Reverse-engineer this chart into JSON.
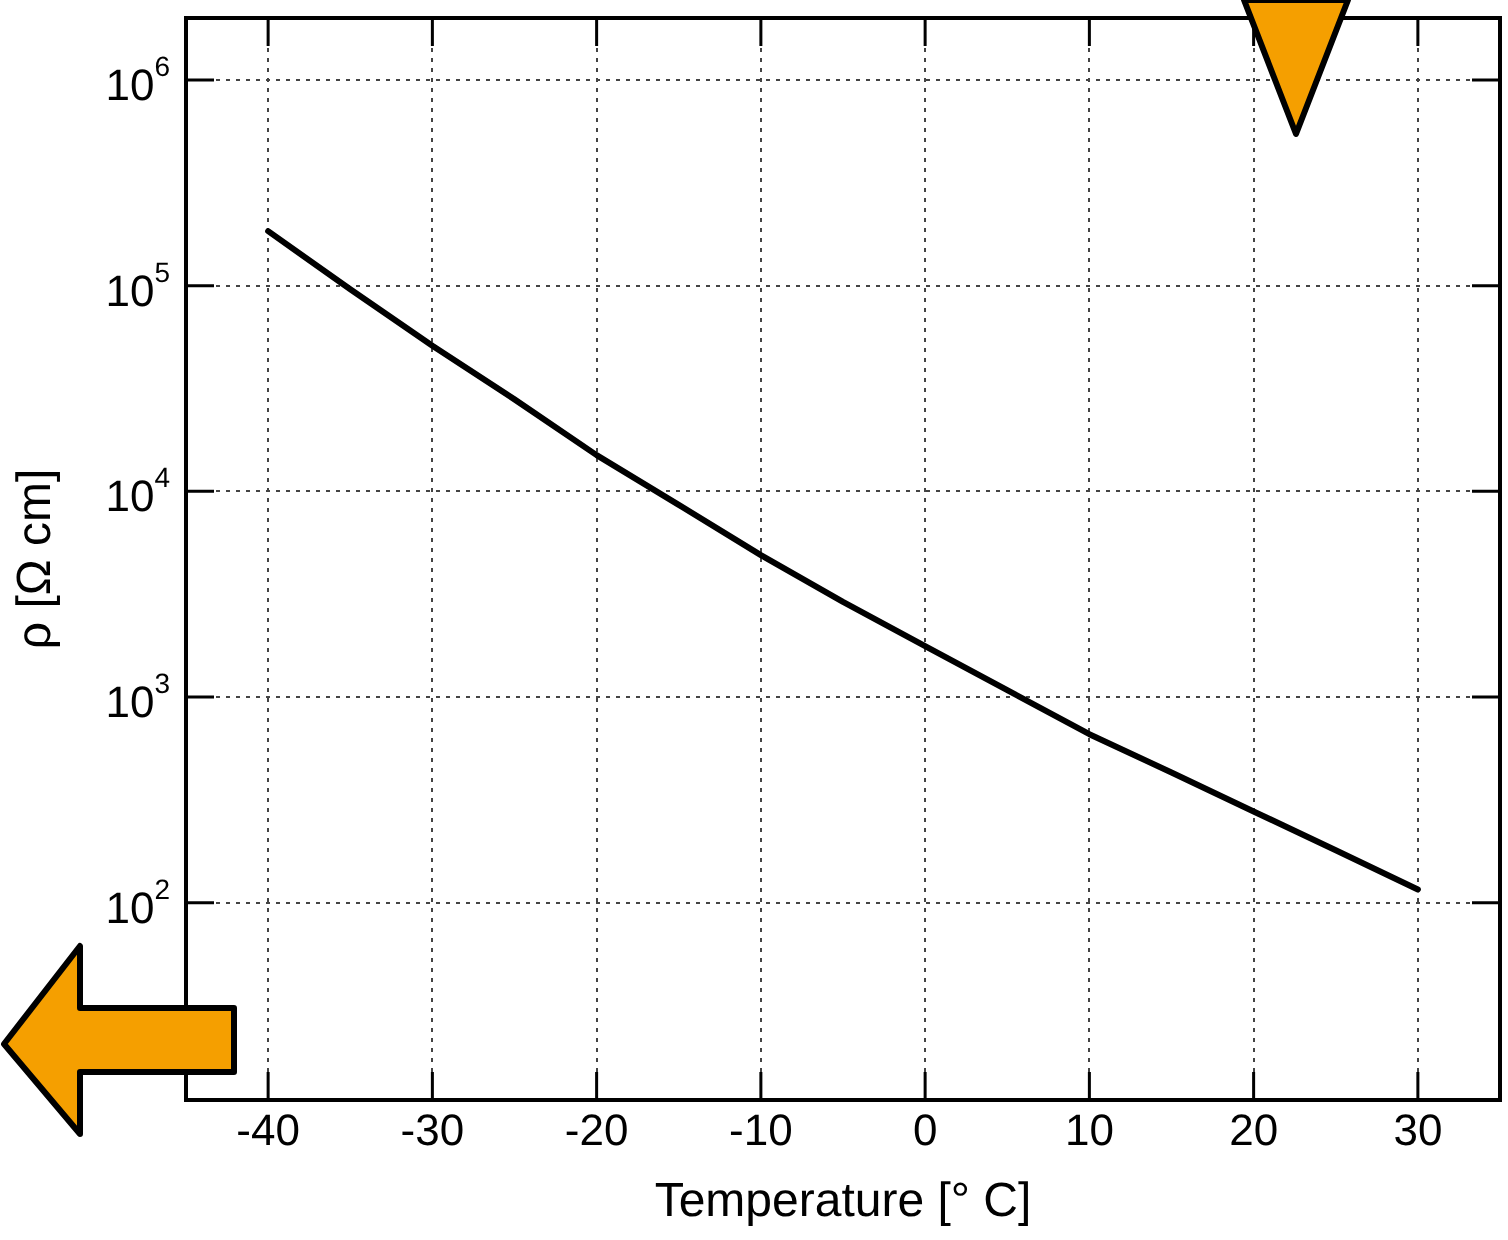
{
  "chart_data": {
    "type": "line",
    "xlabel": "Temperature [° C]",
    "ylabel": "ρ [Ω cm]",
    "x": [
      -40,
      -35,
      -30,
      -25,
      -20,
      -15,
      -10,
      -5,
      0,
      5,
      10,
      15,
      20,
      25,
      30
    ],
    "series": [
      {
        "color": "#000000",
        "values": [
          184000,
          96000,
          51000,
          28000,
          15000,
          8600,
          4900,
          2900,
          1770,
          1080,
          660,
          430,
          278,
          180,
          116
        ]
      }
    ],
    "xlim": [
      -45,
      35
    ],
    "xticks": [
      -40,
      -30,
      -20,
      -10,
      0,
      10,
      20,
      30
    ],
    "ylim": [
      11,
      2000000
    ],
    "yticks": [
      {
        "value": 100,
        "label": "10$^{2}$"
      },
      {
        "value": 1000,
        "label": "10$^{3}$"
      },
      {
        "value": 10000,
        "label": "10$^{4}$"
      },
      {
        "value": 100000,
        "label": "10$^{5}$"
      },
      {
        "value": 1000000,
        "label": "10$^{6}$"
      }
    ],
    "log": "y",
    "grid": true,
    "legend": false,
    "marker": "none",
    "line_style": "solid"
  }
}
